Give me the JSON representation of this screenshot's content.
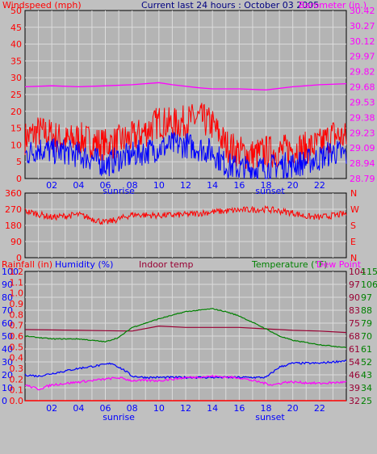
{
  "title": "Current last 24 hours : October 03 2005",
  "colors": {
    "background": "#c0c0c0",
    "plot": "#b4b4b4",
    "grid": "#dcdcdc",
    "wind": "#ff0000",
    "gust": "#0000ff",
    "barometer": "#ff00ff",
    "direction": "#ff0000",
    "rainfall": "#ff0000",
    "humidity": "#0000ff",
    "indoor": "#990033",
    "temperature": "#008000",
    "dewpoint": "#ff00ff",
    "sun_labels": "#0000ff"
  },
  "chart_data": [
    {
      "type": "line",
      "panel": "wind",
      "labels": {
        "left": "Windspeed (mph)",
        "right": "Barometer (in.)"
      },
      "x_ticks": [
        "02",
        "04",
        "06",
        "08",
        "10",
        "12",
        "14",
        "16",
        "18",
        "20",
        "22"
      ],
      "sunrise_label": "sunrise",
      "sunset_label": "sunset",
      "y_left_ticks": [
        "0",
        "5",
        "10",
        "15",
        "20",
        "25",
        "30",
        "35",
        "40",
        "45",
        "50"
      ],
      "y_right_ticks": [
        "28.79",
        "28.94",
        "29.09",
        "29.23",
        "29.38",
        "29.53",
        "29.68",
        "29.82",
        "29.97",
        "30.12",
        "30.27",
        "30.42"
      ],
      "ylim_left": [
        0,
        50
      ],
      "ylim_right": [
        28.79,
        30.42
      ],
      "series": [
        {
          "name": "wind",
          "x": [
            0,
            1,
            2,
            3,
            4,
            5,
            6,
            7,
            8,
            9,
            10,
            11,
            12,
            13,
            14,
            15,
            16,
            17,
            18,
            19,
            20,
            21,
            22,
            23,
            24
          ],
          "y": [
            12,
            14,
            13,
            11,
            12,
            11,
            10,
            11,
            12,
            14,
            17,
            16,
            17,
            18,
            16,
            10,
            8,
            7,
            8,
            8,
            9,
            9,
            10,
            13,
            12
          ]
        },
        {
          "name": "gust",
          "x": [
            0,
            1,
            2,
            3,
            4,
            5,
            6,
            7,
            8,
            9,
            10,
            11,
            12,
            13,
            14,
            15,
            16,
            17,
            18,
            19,
            20,
            21,
            22,
            23,
            24
          ],
          "y": [
            7,
            9,
            8,
            8,
            7,
            6,
            4,
            6,
            7,
            8,
            9,
            10,
            10,
            9,
            8,
            4,
            3,
            3,
            3,
            4,
            4,
            5,
            6,
            8,
            7
          ]
        },
        {
          "name": "barometer",
          "x": [
            0,
            2,
            4,
            6,
            8,
            10,
            11,
            13,
            14,
            16,
            18,
            20,
            22,
            24
          ],
          "y": [
            29.68,
            29.69,
            29.68,
            29.69,
            29.7,
            29.72,
            29.7,
            29.67,
            29.66,
            29.66,
            29.65,
            29.68,
            29.7,
            29.71
          ]
        }
      ]
    },
    {
      "type": "line",
      "panel": "direction",
      "y_left_ticks": [
        "0",
        "90",
        "180",
        "270",
        "360"
      ],
      "y_right_ticks": [
        "N",
        "E",
        "S",
        "W",
        "N"
      ],
      "ylim": [
        0,
        360
      ],
      "series": [
        {
          "name": "direction",
          "x": [
            0,
            2,
            4,
            6,
            7,
            8,
            10,
            12,
            14,
            16,
            18,
            20,
            21,
            22,
            24
          ],
          "y": [
            260,
            225,
            240,
            195,
            215,
            240,
            235,
            240,
            255,
            265,
            270,
            250,
            230,
            225,
            245
          ]
        }
      ]
    },
    {
      "type": "line",
      "panel": "weather",
      "legend": [
        "Rainfall (in)",
        "Humidity (%)",
        "Indoor temp",
        "Temperature (°F)",
        "Dew Point"
      ],
      "y_humidity_ticks": [
        "0",
        "10",
        "20",
        "30",
        "40",
        "50",
        "60",
        "70",
        "80",
        "90",
        "100"
      ],
      "y_rain_ticks": [
        "0.0",
        "0.1",
        "0.2",
        "0.3",
        "0.4",
        "0.5",
        "0.6",
        "0.7",
        "0.8",
        "0.9",
        "1.0",
        "1.1",
        "1.2"
      ],
      "y_indoor_ticks": [
        "32",
        "39",
        "46",
        "54",
        "61",
        "68",
        "75",
        "83",
        "90",
        "97",
        "104"
      ],
      "y_temp_ticks": [
        "25",
        "34",
        "43",
        "52",
        "61",
        "70",
        "79",
        "88",
        "97",
        "106",
        "115"
      ],
      "ylim_temp": [
        25,
        115
      ],
      "ylim_humidity": [
        0,
        100
      ],
      "ylim_rain": [
        0,
        1.2
      ],
      "series": [
        {
          "name": "Rainfall",
          "x": [
            0,
            24
          ],
          "y": [
            0,
            0
          ]
        },
        {
          "name": "Humidity",
          "x": [
            0,
            1,
            2,
            4,
            6,
            6.5,
            7.5,
            8,
            9,
            12,
            14,
            16,
            17,
            18,
            19,
            20,
            22,
            24
          ],
          "y": [
            20,
            19,
            21,
            25,
            28,
            29,
            23,
            19,
            18,
            18,
            18,
            18,
            18,
            18,
            26,
            29,
            29,
            31
          ]
        },
        {
          "name": "Indoor temp",
          "x": [
            0,
            4,
            8,
            10,
            12,
            14,
            16,
            18,
            20,
            22,
            24
          ],
          "y": [
            74.5,
            74,
            73.5,
            77,
            76,
            76,
            76,
            75,
            74,
            73.5,
            72.5
          ]
        },
        {
          "name": "Temperature",
          "x": [
            0,
            2,
            4,
            6,
            7,
            8,
            9,
            10,
            12,
            14,
            15,
            16,
            18,
            19,
            20,
            22,
            24
          ],
          "y": [
            70,
            68,
            68,
            66,
            69,
            76,
            79,
            82,
            87,
            89,
            87,
            84,
            75,
            70,
            67,
            64,
            62
          ]
        },
        {
          "name": "Dew Point",
          "x": [
            0,
            1,
            2,
            4,
            6,
            7,
            8,
            10,
            12,
            14,
            16,
            17,
            18,
            18.5,
            19.5,
            20,
            22,
            24
          ],
          "y": [
            36,
            33,
            36,
            38,
            40,
            41,
            39,
            39,
            41,
            42,
            41,
            39,
            37,
            36,
            38,
            38,
            37,
            38
          ]
        }
      ]
    }
  ]
}
